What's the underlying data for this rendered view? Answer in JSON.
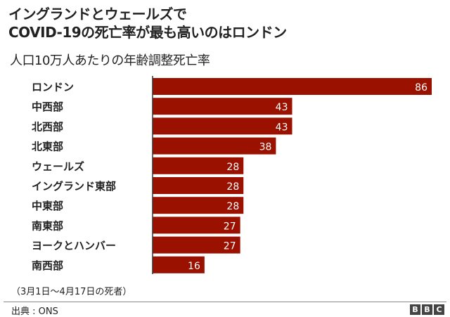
{
  "chart_data": {
    "type": "bar",
    "orientation": "horizontal",
    "title": [
      "イングランドとウェールズで",
      "COVID-19の死亡率が最も高いのはロンドン"
    ],
    "subtitle": "人口10万人あたりの年齢調整死亡率",
    "categories": [
      "ロンドン",
      "中西部",
      "北西部",
      "北東部",
      "ウェールズ",
      "イングランド東部",
      "中東部",
      "南東部",
      "ヨークとハンバー",
      "南西部"
    ],
    "values": [
      86,
      43,
      43,
      38,
      28,
      28,
      28,
      27,
      27,
      16
    ],
    "xlim": [
      0,
      86
    ],
    "bar_color": "#9b1100",
    "grid": false,
    "note": "（3月1日～4月17日の死者）",
    "source": "出典 : ONS"
  },
  "logo": [
    "B",
    "B",
    "C"
  ]
}
